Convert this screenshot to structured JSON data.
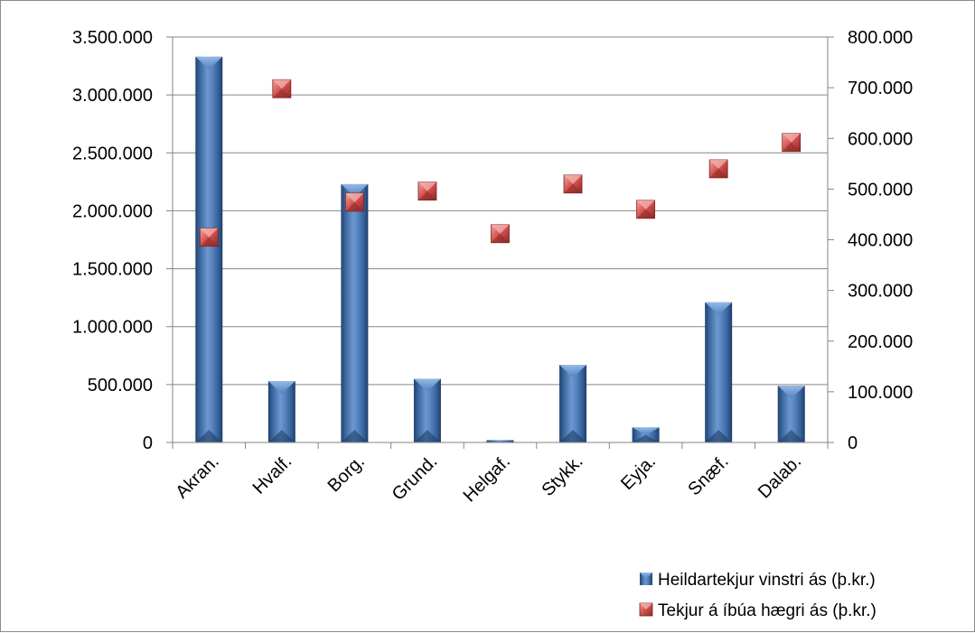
{
  "chart_data": {
    "type": "bar",
    "categories": [
      "Akran.",
      "Hvalf.",
      "Borg.",
      "Grund.",
      "Helgaf.",
      "Stykk.",
      "Eyja.",
      "Snæf.",
      "Dalab."
    ],
    "series": [
      {
        "name": "Heildartekjur vinstri ás (þ.kr.)",
        "type": "bar",
        "axis": "left",
        "color": "#4F81BD",
        "values": [
          3330000,
          530000,
          2230000,
          550000,
          20000,
          670000,
          130000,
          1210000,
          490000
        ]
      },
      {
        "name": "Tekjur á íbúa hægri ás (þ.kr.)",
        "type": "scatter",
        "axis": "right",
        "color": "#C0504D",
        "values": [
          405000,
          698000,
          474000,
          496000,
          412000,
          510000,
          460000,
          540000,
          592000
        ]
      }
    ],
    "left_axis": {
      "ylim": [
        0,
        3500000
      ],
      "ticks": [
        0,
        500000,
        1000000,
        1500000,
        2000000,
        2500000,
        3000000,
        3500000
      ],
      "tick_labels": [
        "0",
        "500.000",
        "1.000.000",
        "1.500.000",
        "2.000.000",
        "2.500.000",
        "3.000.000",
        "3.500.000"
      ]
    },
    "right_axis": {
      "ylim": [
        0,
        800000
      ],
      "ticks": [
        0,
        100000,
        200000,
        300000,
        400000,
        500000,
        600000,
        700000,
        800000
      ],
      "tick_labels": [
        "0",
        "100.000",
        "200.000",
        "300.000",
        "400.000",
        "500.000",
        "600.000",
        "700.000",
        "800.000"
      ]
    },
    "grid": true,
    "legend_position": "bottom-right"
  }
}
